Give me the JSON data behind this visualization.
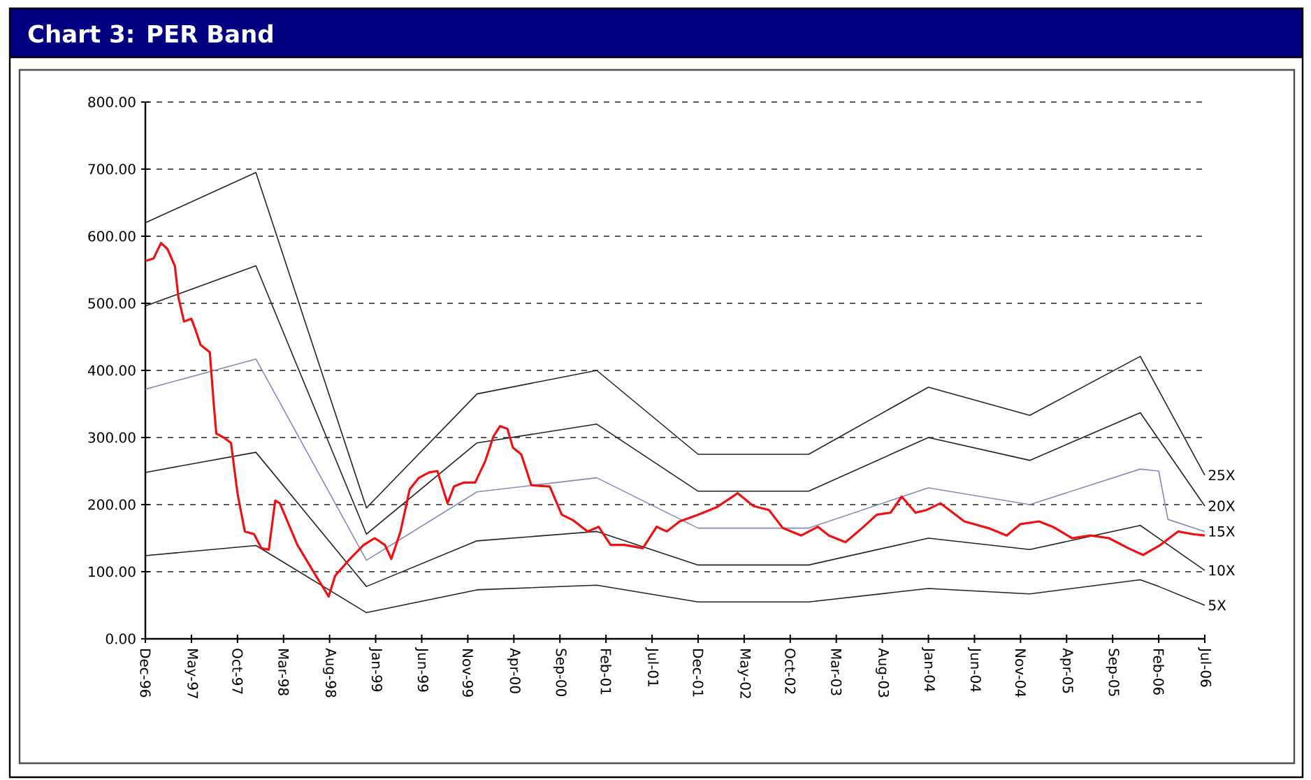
{
  "chart_data": {
    "type": "line",
    "title": "Chart 3: PER Band",
    "xlim": [
      "1996-12",
      "2006-07"
    ],
    "xticks": [
      {
        "value": "1996-12",
        "label": "Dec-96"
      },
      {
        "value": "1997-05",
        "label": "May-97"
      },
      {
        "value": "1997-10",
        "label": "Oct-97"
      },
      {
        "value": "1998-03",
        "label": "Mar-98"
      },
      {
        "value": "1998-08",
        "label": "Aug-98"
      },
      {
        "value": "1999-01",
        "label": "Jan-99"
      },
      {
        "value": "1999-06",
        "label": "Jun-99"
      },
      {
        "value": "1999-11",
        "label": "Nov-99"
      },
      {
        "value": "2000-04",
        "label": "Apr-00"
      },
      {
        "value": "2000-09",
        "label": "Sep-00"
      },
      {
        "value": "2001-02",
        "label": "Feb-01"
      },
      {
        "value": "2001-07",
        "label": "Jul-01"
      },
      {
        "value": "2001-12",
        "label": "Dec-01"
      },
      {
        "value": "2002-05",
        "label": "May-02"
      },
      {
        "value": "2002-10",
        "label": "Oct-02"
      },
      {
        "value": "2003-03",
        "label": "Mar-03"
      },
      {
        "value": "2003-08",
        "label": "Aug-03"
      },
      {
        "value": "2004-01",
        "label": "Jan-04"
      },
      {
        "value": "2004-06",
        "label": "Jun-04"
      },
      {
        "value": "2004-11",
        "label": "Nov-04"
      },
      {
        "value": "2005-04",
        "label": "Apr-05"
      },
      {
        "value": "2005-09",
        "label": "Sep-05"
      },
      {
        "value": "2006-02",
        "label": "Feb-06"
      },
      {
        "value": "2006-07",
        "label": "Jul-06"
      }
    ],
    "ylim": [
      0,
      800
    ],
    "yticks": [
      {
        "value": 0,
        "label": "0.00"
      },
      {
        "value": 100,
        "label": "100.00"
      },
      {
        "value": 200,
        "label": "200.00"
      },
      {
        "value": 300,
        "label": "300.00"
      },
      {
        "value": 400,
        "label": "400.00"
      },
      {
        "value": 500,
        "label": "500.00"
      },
      {
        "value": 600,
        "label": "600.00"
      },
      {
        "value": 700,
        "label": "700.00"
      },
      {
        "value": 800,
        "label": "800.00"
      }
    ],
    "grid": "y",
    "legend": false,
    "marker": "none",
    "line_style": "solid",
    "series": [
      {
        "name": "25X",
        "color": "#222222",
        "x": [
          "1996-12-01",
          "1997-12-01",
          "1998-12-01",
          "1999-12-01",
          "2001-01-01",
          "2001-12-01",
          "2002-12-01",
          "2004-01-01",
          "2004-12-01",
          "2005-12-01",
          "2006-07-01"
        ],
        "values": [
          620,
          695,
          195,
          365,
          400,
          275,
          275,
          375,
          333,
          421,
          244
        ]
      },
      {
        "name": "20X",
        "color": "#222222",
        "x": [
          "1996-12-01",
          "1997-12-01",
          "1998-12-01",
          "1999-12-01",
          "2001-01-01",
          "2001-12-01",
          "2002-12-01",
          "2004-01-01",
          "2004-12-01",
          "2005-12-01",
          "2006-07-01"
        ],
        "values": [
          496,
          556,
          156,
          292,
          320,
          220,
          220,
          300,
          266,
          337,
          198
        ]
      },
      {
        "name": "15X",
        "color": "#8888bb",
        "x": [
          "1996-12-01",
          "1997-12-01",
          "1998-12-01",
          "1999-12-01",
          "2001-01-01",
          "2001-12-01",
          "2002-12-01",
          "2004-01-01",
          "2004-12-01",
          "2005-12-01",
          "2006-02-01",
          "2006-03-01",
          "2006-07-01"
        ],
        "values": [
          372,
          417,
          117,
          219,
          240,
          165,
          165,
          225,
          200,
          253,
          250,
          178,
          160
        ]
      },
      {
        "name": "10X",
        "color": "#222222",
        "x": [
          "1996-12-01",
          "1997-12-01",
          "1998-12-01",
          "1999-12-01",
          "2001-01-01",
          "2001-12-01",
          "2002-12-01",
          "2004-01-01",
          "2004-12-01",
          "2005-12-01",
          "2006-07-01"
        ],
        "values": [
          248,
          278,
          78,
          146,
          160,
          110,
          110,
          150,
          133,
          169,
          102
        ]
      },
      {
        "name": "5X",
        "color": "#222222",
        "x": [
          "1996-12-01",
          "1997-12-01",
          "1998-12-01",
          "1999-12-01",
          "2001-01-01",
          "2001-12-01",
          "2002-12-01",
          "2004-01-01",
          "2004-12-01",
          "2005-12-01",
          "2006-02-01",
          "2006-07-01"
        ],
        "values": [
          124,
          139,
          39,
          73,
          80,
          55,
          55,
          75,
          67,
          88,
          78,
          50
        ]
      },
      {
        "color": "#ee1111",
        "x": [
          "1996-12-01",
          "1996-12-28",
          "1997-01-22",
          "1997-02-13",
          "1997-03-07",
          "1997-03-19",
          "1997-04-07",
          "1997-05-01",
          "1997-05-16",
          "1997-06-01",
          "1997-07-01",
          "1997-07-13",
          "1997-07-22",
          "1997-08-16",
          "1997-09-10",
          "1997-10-01",
          "1997-10-25",
          "1997-11-25",
          "1997-12-19",
          "1998-01-13",
          "1998-02-04",
          "1998-02-19",
          "1998-04-16",
          "1998-06-19",
          "1998-07-28",
          "1998-08-19",
          "1998-10-07",
          "1998-11-22",
          "1998-12-28",
          "1999-02-01",
          "1999-02-22",
          "1999-03-22",
          "1999-04-22",
          "1999-05-22",
          "1999-06-25",
          "1999-07-22",
          "1999-08-25",
          "1999-09-16",
          "1999-10-19",
          "1999-11-25",
          "1999-12-28",
          "2000-01-25",
          "2000-02-16",
          "2000-03-10",
          "2000-03-28",
          "2000-04-25",
          "2000-05-28",
          "2000-07-28",
          "2000-09-07",
          "2000-10-13",
          "2000-12-01",
          "2001-01-07",
          "2001-02-16",
          "2001-04-01",
          "2001-06-01",
          "2001-07-16",
          "2001-08-19",
          "2001-10-01",
          "2001-12-01",
          "2002-02-01",
          "2002-04-10",
          "2002-06-01",
          "2002-07-22",
          "2002-09-07",
          "2002-11-07",
          "2003-01-01",
          "2003-02-07",
          "2003-04-01",
          "2003-05-25",
          "2003-07-13",
          "2003-08-28",
          "2003-10-04",
          "2003-11-19",
          "2003-12-25",
          "2004-02-10",
          "2004-04-28",
          "2004-07-16",
          "2004-09-16",
          "2004-11-01",
          "2005-01-01",
          "2005-02-16",
          "2005-04-19",
          "2005-06-19",
          "2005-08-19",
          "2005-10-22",
          "2005-12-10",
          "2006-02-07",
          "2006-04-04",
          "2006-05-22",
          "2006-07-01"
        ],
        "values": [
          563,
          567,
          590,
          581,
          556,
          508,
          473,
          477,
          458,
          438,
          427,
          354,
          306,
          300,
          292,
          217,
          160,
          156,
          135,
          133,
          206,
          202,
          140,
          92,
          63,
          94,
          119,
          140,
          150,
          140,
          119,
          160,
          223,
          240,
          248,
          250,
          202,
          227,
          233,
          233,
          265,
          302,
          317,
          313,
          285,
          275,
          229,
          227,
          185,
          177,
          160,
          167,
          140,
          140,
          135,
          167,
          160,
          175,
          185,
          196,
          217,
          198,
          192,
          165,
          154,
          167,
          154,
          144,
          165,
          185,
          188,
          212,
          188,
          192,
          202,
          175,
          165,
          154,
          171,
          175,
          167,
          150,
          154,
          150,
          135,
          125,
          140,
          160,
          156,
          154
        ]
      }
    ]
  }
}
